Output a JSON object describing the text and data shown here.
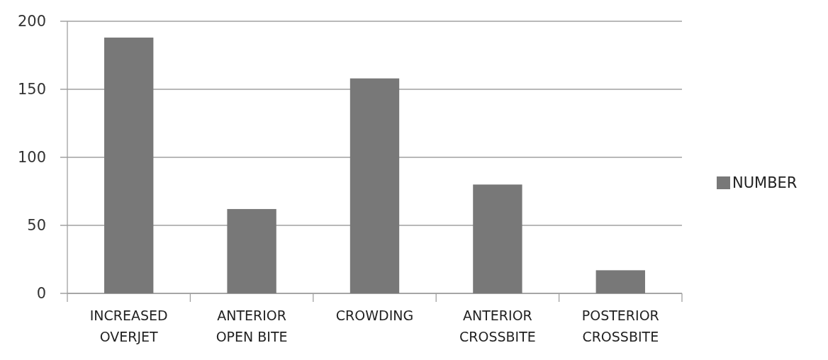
{
  "chart_data": {
    "type": "bar",
    "categories": [
      "INCREASED OVERJET",
      "ANTERIOR OPEN BITE",
      "CROWDING",
      "ANTERIOR CROSSBITE",
      "POSTERIOR CROSSBITE"
    ],
    "series": [
      {
        "name": "NUMBER",
        "color": "#787878",
        "values": [
          188,
          62,
          158,
          80,
          17
        ]
      }
    ],
    "ylim": [
      0,
      200
    ],
    "yticks": [
      0,
      50,
      100,
      150,
      200
    ],
    "grid": "y",
    "legend": "right"
  }
}
